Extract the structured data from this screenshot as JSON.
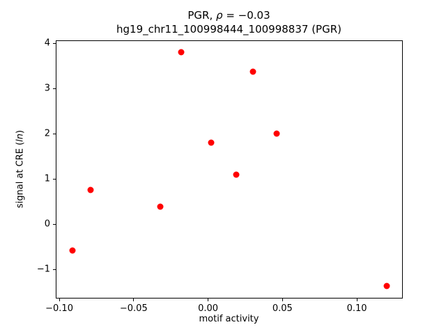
{
  "chart_data": {
    "type": "scatter",
    "title_part1": "PGR, ",
    "title_rho": "ρ",
    "title_part2": " = −0.03",
    "title_line2": "hg19_chr11_100998444_100998837 (PGR)",
    "xlabel": "motif activity",
    "ylabel_prefix": "signal at CRE (",
    "ylabel_italic": "ln",
    "ylabel_suffix": ")",
    "marker_color": "#ff0000",
    "grid": false,
    "legend": null,
    "xlim": [
      -0.1019,
      0.1304
    ],
    "ylim": [
      -1.63,
      4.05
    ],
    "xticks": [
      {
        "v": -0.1,
        "label": "−0.10"
      },
      {
        "v": -0.05,
        "label": "−0.05"
      },
      {
        "v": 0.0,
        "label": "0.00"
      },
      {
        "v": 0.05,
        "label": "0.05"
      },
      {
        "v": 0.1,
        "label": "0.10"
      }
    ],
    "yticks": [
      {
        "v": -1,
        "label": "−1"
      },
      {
        "v": 0,
        "label": "0"
      },
      {
        "v": 1,
        "label": "1"
      },
      {
        "v": 2,
        "label": "2"
      },
      {
        "v": 3,
        "label": "3"
      },
      {
        "v": 4,
        "label": "4"
      }
    ],
    "points": [
      [
        -0.091,
        -0.59
      ],
      [
        -0.079,
        0.75
      ],
      [
        -0.032,
        0.38
      ],
      [
        -0.018,
        3.8
      ],
      [
        0.002,
        1.81
      ],
      [
        0.019,
        1.09
      ],
      [
        0.03,
        3.38
      ],
      [
        0.046,
        2.0
      ],
      [
        0.12,
        -1.37
      ]
    ]
  }
}
